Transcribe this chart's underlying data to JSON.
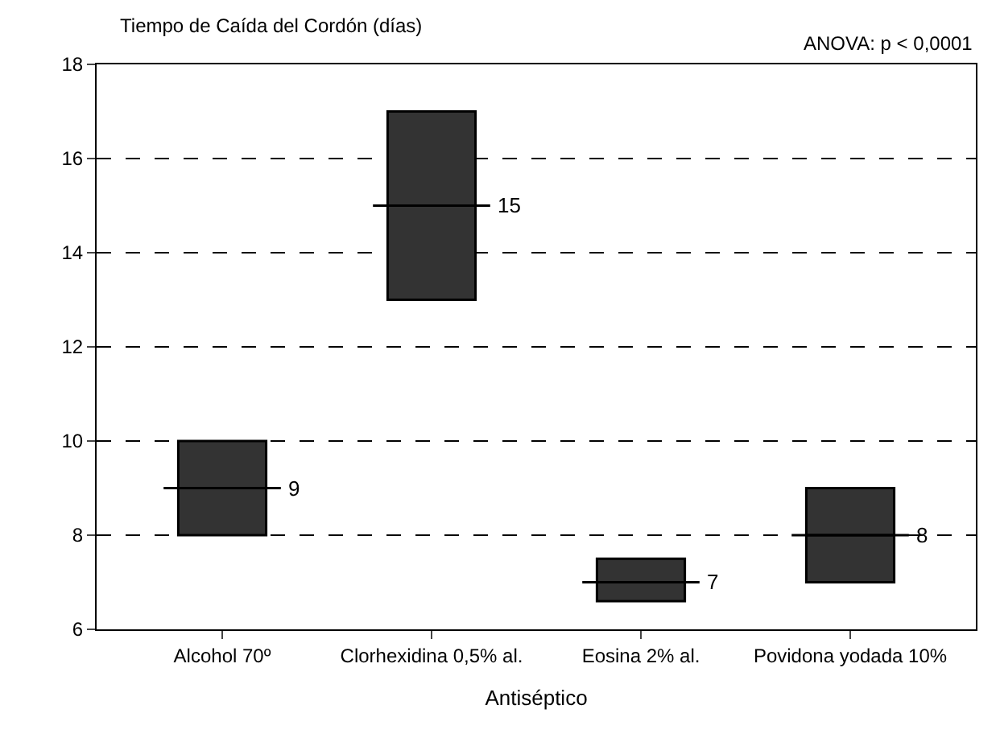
{
  "chart_data": {
    "type": "box",
    "title": "Tiempo de Caída del Cordón (días)",
    "xlabel": "Antiséptico",
    "annotations": [
      "ANOVA: p < 0,0001"
    ],
    "categories": [
      "Alcohol 70º",
      "Clorhexidina 0,5% al.",
      "Eosina 2% al.",
      "Povidona yodada 10%"
    ],
    "boxes": [
      {
        "low": 8,
        "q1": 8,
        "median": 9,
        "q3": 10,
        "high": 10
      },
      {
        "low": 13,
        "q1": 13,
        "median": 15,
        "q3": 17,
        "high": 17
      },
      {
        "low": 6.6,
        "q1": 6.6,
        "median": 7,
        "q3": 7.5,
        "high": 7.5
      },
      {
        "low": 7,
        "q1": 7,
        "median": 8,
        "q3": 9,
        "high": 9
      }
    ],
    "value_labels": [
      "9",
      "15",
      "7",
      "8"
    ],
    "color": "#333333",
    "ylim": [
      6,
      18
    ],
    "yticks": [
      6,
      8,
      10,
      12,
      14,
      16,
      18
    ],
    "grid": "y",
    "line_style": "dashed"
  }
}
